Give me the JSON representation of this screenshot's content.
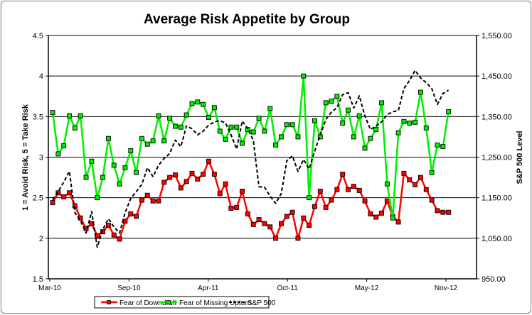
{
  "chart_data": {
    "type": "line",
    "title": "Average Risk Appetite by Group",
    "ylabel": "1 = Avoid Risk, 5 = Take Risk",
    "y2label": "S&P 500 Level",
    "xlabel": "",
    "ylim": [
      1.5,
      4.5
    ],
    "y_ticks": [
      "1.5",
      "2",
      "2.5",
      "3",
      "3.5",
      "4",
      "4.5"
    ],
    "y2lim": [
      950,
      1550
    ],
    "y2_ticks": [
      "950.00",
      "1,050.00",
      "1,150.00",
      "1,250.00",
      "1,350.00",
      "1,450.00",
      "1,550.00"
    ],
    "x_tick_labels": [
      "Mar-10",
      "Sep-10",
      "Apr-11",
      "Oct-11",
      "May-12",
      "Nov-12"
    ],
    "grid": "horizontal major",
    "legend_position": "bottom",
    "series": [
      {
        "name": "Fear of Downdraft",
        "axis": "left",
        "color": "#ff0000",
        "marker": "square",
        "values": [
          2.44,
          2.56,
          2.51,
          2.56,
          2.4,
          2.25,
          2.12,
          2.18,
          2.03,
          2.08,
          2.16,
          2.04,
          1.99,
          2.21,
          2.3,
          2.27,
          2.47,
          2.53,
          2.46,
          2.46,
          2.69,
          2.75,
          2.78,
          2.62,
          2.7,
          2.8,
          2.73,
          2.79,
          2.95,
          2.79,
          2.55,
          2.67,
          2.37,
          2.38,
          2.58,
          2.3,
          2.17,
          2.23,
          2.18,
          2.14,
          2.0,
          2.18,
          2.27,
          2.32,
          2.0,
          2.25,
          2.16,
          2.39,
          2.58,
          2.38,
          2.47,
          2.6,
          2.79,
          2.6,
          2.64,
          2.59,
          2.46,
          2.3,
          2.26,
          2.31,
          2.46,
          2.27,
          2.2,
          2.8,
          2.72,
          2.66,
          2.75,
          2.6,
          2.47,
          2.34,
          2.32,
          2.32
        ]
      },
      {
        "name": "Fear of Missing Upturn",
        "axis": "left",
        "color": "#00ee00",
        "marker": "square",
        "values": [
          3.55,
          3.04,
          3.14,
          3.51,
          3.36,
          3.51,
          2.75,
          2.95,
          2.5,
          2.75,
          3.23,
          2.9,
          2.67,
          2.87,
          3.08,
          2.81,
          3.23,
          3.16,
          3.2,
          3.51,
          3.2,
          3.48,
          3.38,
          3.37,
          3.52,
          3.66,
          3.68,
          3.65,
          3.49,
          3.61,
          3.32,
          3.22,
          3.37,
          3.37,
          3.17,
          3.34,
          3.31,
          3.48,
          3.32,
          3.6,
          3.15,
          3.25,
          3.4,
          3.4,
          3.25,
          4.0,
          2.5,
          3.45,
          3.25,
          3.67,
          3.69,
          3.75,
          3.42,
          3.58,
          3.25,
          3.51,
          3.11,
          3.23,
          3.34,
          3.67,
          2.67,
          2.25,
          3.3,
          3.44,
          3.42,
          3.43,
          3.8,
          3.36,
          2.81,
          3.15,
          3.13,
          3.56
        ]
      },
      {
        "name": "S&P 500",
        "axis": "right",
        "color": "#000000",
        "marker": "none",
        "dash": true,
        "values": [
          1145,
          1165,
          1189,
          1215,
          1113,
          1093,
          1063,
          1116,
          1028,
          1072,
          1098,
          1078,
          1063,
          1113,
          1148,
          1165,
          1183,
          1224,
          1202,
          1230,
          1247,
          1259,
          1292,
          1276,
          1327,
          1320,
          1305,
          1314,
          1329,
          1337,
          1340,
          1334,
          1305,
          1270,
          1339,
          1320,
          1291,
          1177,
          1176,
          1154,
          1136,
          1160,
          1241,
          1253,
          1215,
          1244,
          1221,
          1265,
          1305,
          1343,
          1361,
          1372,
          1404,
          1409,
          1371,
          1401,
          1352,
          1318,
          1327,
          1337,
          1355,
          1362,
          1365,
          1419,
          1439,
          1464,
          1445,
          1434,
          1419,
          1380,
          1407,
          1415
        ]
      }
    ]
  }
}
